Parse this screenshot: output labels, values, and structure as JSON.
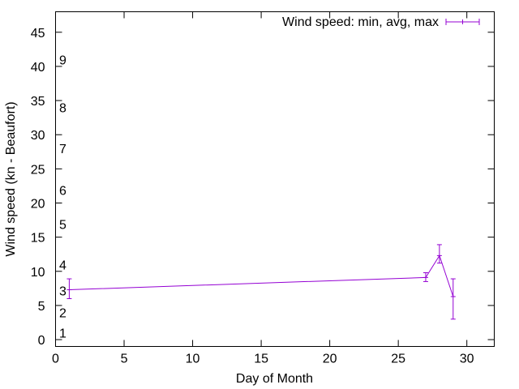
{
  "chart_data": {
    "type": "line",
    "title": "",
    "xlabel": "Day of Month",
    "ylabel": "Wind speed (kn - Beaufort)",
    "xlim": [
      0,
      32
    ],
    "ylim": [
      -1,
      48
    ],
    "xticks": [
      0,
      5,
      10,
      15,
      20,
      25,
      30
    ],
    "yticks": [
      0,
      5,
      10,
      15,
      20,
      25,
      30,
      35,
      40,
      45
    ],
    "legend": {
      "label": "Wind speed: min, avg, max",
      "placement": "top-right"
    },
    "series": [
      {
        "name": "Wind speed: min, avg, max",
        "color": "#9400d3",
        "points": [
          {
            "x": 1,
            "avg": 7.3,
            "min": 6.0,
            "max": 8.9
          },
          {
            "x": 27,
            "avg": 9.1,
            "min": 8.5,
            "max": 9.8
          },
          {
            "x": 28,
            "avg": 12.3,
            "min": 11.2,
            "max": 13.9
          },
          {
            "x": 29,
            "avg": 6.3,
            "min": 3.0,
            "max": 8.9
          }
        ]
      }
    ],
    "annotations": [
      {
        "text": "1",
        "x": 0.5,
        "y": 1.0
      },
      {
        "text": "2",
        "x": 0.5,
        "y": 4.0
      },
      {
        "text": "3",
        "x": 0.5,
        "y": 7.2
      },
      {
        "text": "4",
        "x": 0.5,
        "y": 11.0
      },
      {
        "text": "5",
        "x": 0.5,
        "y": 16.9
      },
      {
        "text": "6",
        "x": 0.5,
        "y": 21.9
      },
      {
        "text": "7",
        "x": 0.5,
        "y": 28.0
      },
      {
        "text": "8",
        "x": 0.5,
        "y": 34.0
      },
      {
        "text": "9",
        "x": 0.5,
        "y": 41.0
      }
    ]
  }
}
